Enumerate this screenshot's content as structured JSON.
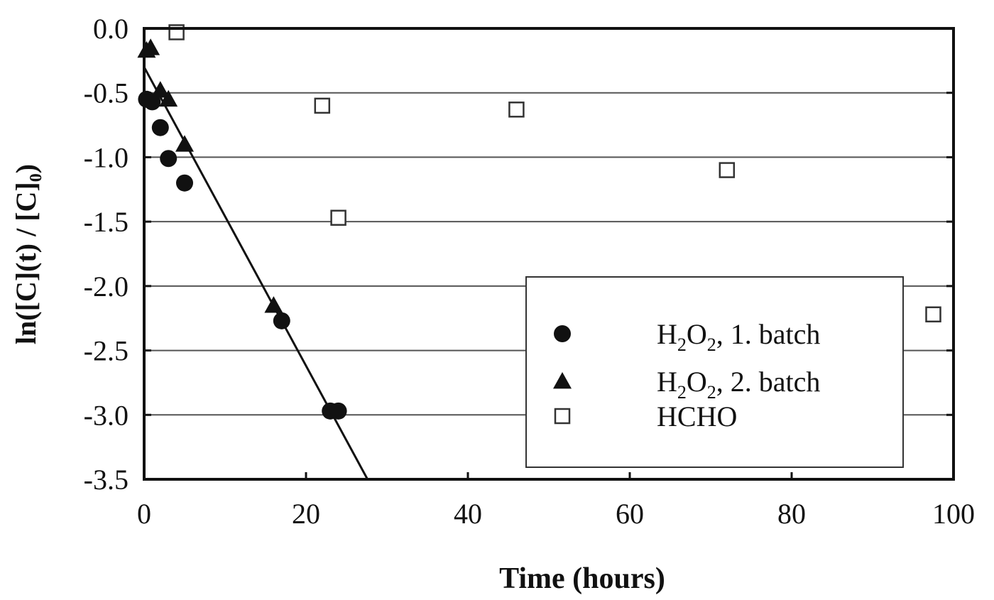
{
  "chart_data": {
    "type": "scatter",
    "xlabel": "Time (hours)",
    "ylabel": "ln([C](t) / [C]₀)",
    "xlim": [
      0,
      100
    ],
    "ylim": [
      -3.5,
      0.0
    ],
    "x_ticks": [
      0,
      20,
      40,
      60,
      80,
      100
    ],
    "y_ticks": [
      0.0,
      -0.5,
      -1.0,
      -1.5,
      -2.0,
      -2.5,
      -3.0,
      -3.5
    ],
    "y_tick_labels": [
      "0.0",
      "-0.5",
      "-1.0",
      "-1.5",
      "-2.0",
      "-2.5",
      "-3.0",
      "-3.5"
    ],
    "grid": "horizontal",
    "legend_position": "bottom-right",
    "series": [
      {
        "name": "H2O2, 1. batch",
        "legend": {
          "pre1": "H",
          "sub1": "2",
          "pre2": "O",
          "sub2": "2",
          "post": ", 1. batch"
        },
        "marker": "filled-circle",
        "x": [
          0.3,
          1.0,
          2.0,
          3.0,
          5.0,
          17.0,
          23.0,
          24.0
        ],
        "y": [
          -0.55,
          -0.57,
          -0.77,
          -1.01,
          -1.2,
          -2.27,
          -2.97,
          -2.97
        ]
      },
      {
        "name": "H2O2, 2. batch",
        "legend": {
          "pre1": "H",
          "sub1": "2",
          "pre2": "O",
          "sub2": "2",
          "post": ", 2. batch"
        },
        "marker": "filled-triangle",
        "x": [
          0.3,
          0.8,
          2.0,
          3.0,
          5.0,
          16.0
        ],
        "y": [
          -0.17,
          -0.15,
          -0.48,
          -0.55,
          -0.9,
          -2.15
        ]
      },
      {
        "name": "HCHO",
        "legend": {
          "post": "HCHO"
        },
        "marker": "open-square",
        "x": [
          4.0,
          22.0,
          24.0,
          46.0,
          72.0,
          97.5
        ],
        "y": [
          -0.03,
          -0.6,
          -1.47,
          -0.63,
          -1.1,
          -2.22
        ]
      }
    ],
    "fit_line": {
      "x": [
        0,
        27.6
      ],
      "y": [
        -0.3,
        -3.5
      ]
    }
  }
}
